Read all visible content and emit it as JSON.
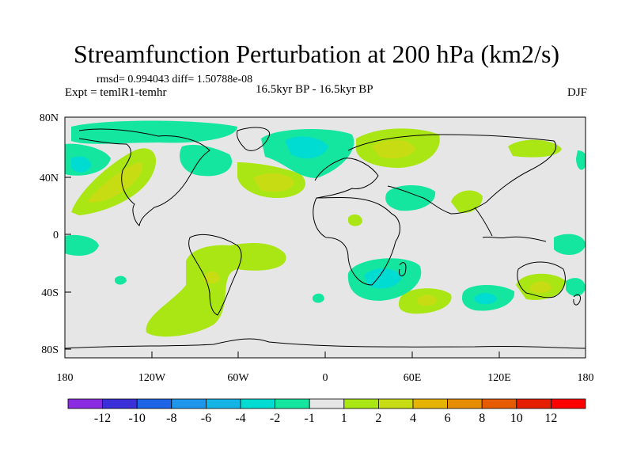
{
  "title": "Streamfunction Perturbation at 200 hPa (km2/s)",
  "stats": "rmsd= 0.994043 diff= 1.50788e-08",
  "experiment": "Expt = temlR1-temhr",
  "period": "16.5kyr BP - 16.5kyr BP",
  "season": "DJF",
  "lat_ticks": [
    "80N",
    "40N",
    "0",
    "40S",
    "80S"
  ],
  "lon_ticks": [
    "180",
    "120W",
    "60W",
    "0",
    "60E",
    "120E",
    "180"
  ],
  "colorbar": {
    "labels": [
      "-12",
      "-10",
      "-8",
      "-6",
      "-4",
      "-2",
      "-1",
      "1",
      "2",
      "4",
      "6",
      "8",
      "10",
      "12"
    ],
    "colors": [
      "#8a2be2",
      "#3a2fd9",
      "#1e64e6",
      "#1e96eb",
      "#14b4e6",
      "#00dcd2",
      "#14e6a0",
      "#e6e6e6",
      "#aae614",
      "#c8dc14",
      "#e6b400",
      "#e68c00",
      "#e65a00",
      "#e61e00",
      "#ff0000"
    ]
  },
  "colors": {
    "land_outline": "#000000",
    "neutral": "#e6e6e6",
    "pos_level1": "#aae614",
    "pos_level2": "#c8dc14",
    "neg_level1": "#14e6a0",
    "neg_level2": "#00dcd2"
  }
}
